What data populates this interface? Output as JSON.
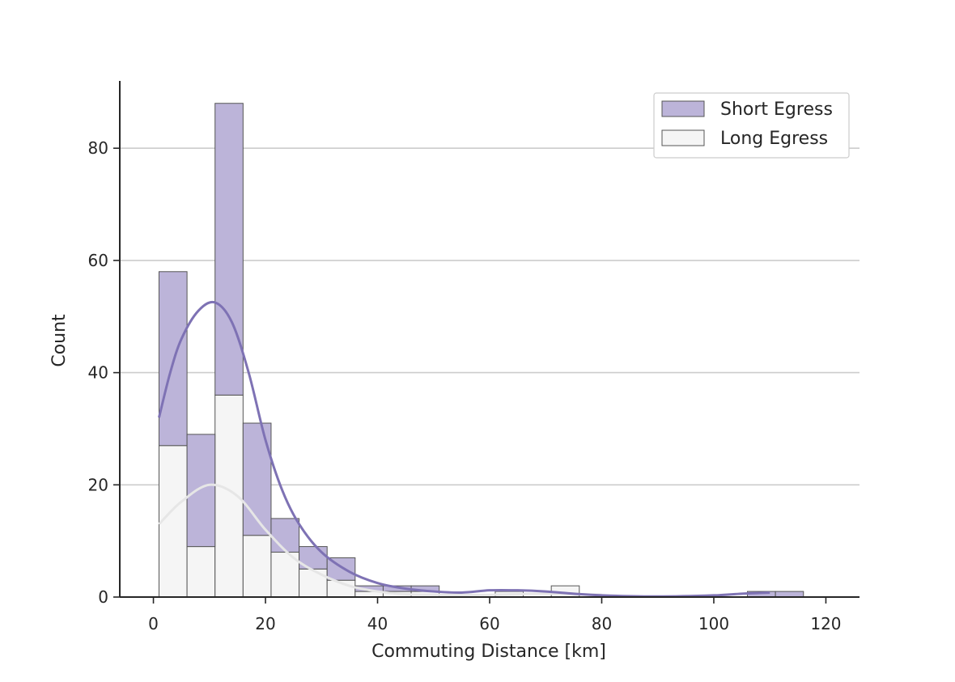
{
  "chart_data": {
    "type": "bar",
    "stacked": true,
    "bin_width": 5,
    "xlabel": "Commuting Distance [km]",
    "ylabel": "Count",
    "xlim": [
      -6,
      126
    ],
    "ylim": [
      0,
      92
    ],
    "xticks": [
      0,
      20,
      40,
      60,
      80,
      100,
      120
    ],
    "yticks": [
      0,
      20,
      40,
      60,
      80
    ],
    "grid": "horizontal",
    "legend_position": "top-right",
    "series": [
      {
        "name": "Long Egress",
        "color": "#f5f5f5",
        "bins": [
          {
            "x0": 1,
            "count": 27
          },
          {
            "x0": 6,
            "count": 9
          },
          {
            "x0": 11,
            "count": 36
          },
          {
            "x0": 16,
            "count": 11
          },
          {
            "x0": 21,
            "count": 8
          },
          {
            "x0": 26,
            "count": 5
          },
          {
            "x0": 31,
            "count": 3
          },
          {
            "x0": 36,
            "count": 1
          },
          {
            "x0": 41,
            "count": 1
          },
          {
            "x0": 46,
            "count": 1
          },
          {
            "x0": 51,
            "count": 0
          },
          {
            "x0": 56,
            "count": 0
          },
          {
            "x0": 61,
            "count": 1
          },
          {
            "x0": 66,
            "count": 0
          },
          {
            "x0": 71,
            "count": 2
          },
          {
            "x0": 106,
            "count": 0
          },
          {
            "x0": 111,
            "count": 0
          }
        ],
        "kde": {
          "x": [
            1,
            5,
            10,
            15,
            20,
            25,
            30,
            35,
            40,
            45,
            50,
            60,
            70,
            80
          ],
          "y": [
            13,
            17,
            20,
            18,
            12,
            7,
            4,
            2,
            1,
            0.5,
            0.4,
            0.4,
            0.6,
            0.4
          ]
        }
      },
      {
        "name": "Short Egress",
        "color": "#bcb4d9",
        "line_color": "#7e72b4",
        "bins": [
          {
            "x0": 1,
            "count": 31
          },
          {
            "x0": 6,
            "count": 20
          },
          {
            "x0": 11,
            "count": 52
          },
          {
            "x0": 16,
            "count": 20
          },
          {
            "x0": 21,
            "count": 6
          },
          {
            "x0": 26,
            "count": 4
          },
          {
            "x0": 31,
            "count": 4
          },
          {
            "x0": 36,
            "count": 1
          },
          {
            "x0": 41,
            "count": 1
          },
          {
            "x0": 46,
            "count": 1
          },
          {
            "x0": 51,
            "count": 0
          },
          {
            "x0": 56,
            "count": 0
          },
          {
            "x0": 61,
            "count": 0
          },
          {
            "x0": 66,
            "count": 0
          },
          {
            "x0": 71,
            "count": 0
          },
          {
            "x0": 106,
            "count": 1
          },
          {
            "x0": 111,
            "count": 1
          }
        ],
        "kde": {
          "x": [
            1,
            3,
            5,
            8,
            11,
            14,
            17,
            20,
            23,
            26,
            30,
            35,
            40,
            45,
            50,
            55,
            60,
            65,
            70,
            75,
            80,
            90,
            100,
            105,
            110
          ],
          "y": [
            32,
            40,
            46,
            51,
            52.5,
            49,
            40,
            28,
            19,
            13,
            8,
            4.5,
            2.5,
            1.5,
            1,
            0.8,
            1.2,
            1.2,
            1,
            0.6,
            0.3,
            0.1,
            0.3,
            0.6,
            0.8
          ]
        }
      }
    ]
  }
}
